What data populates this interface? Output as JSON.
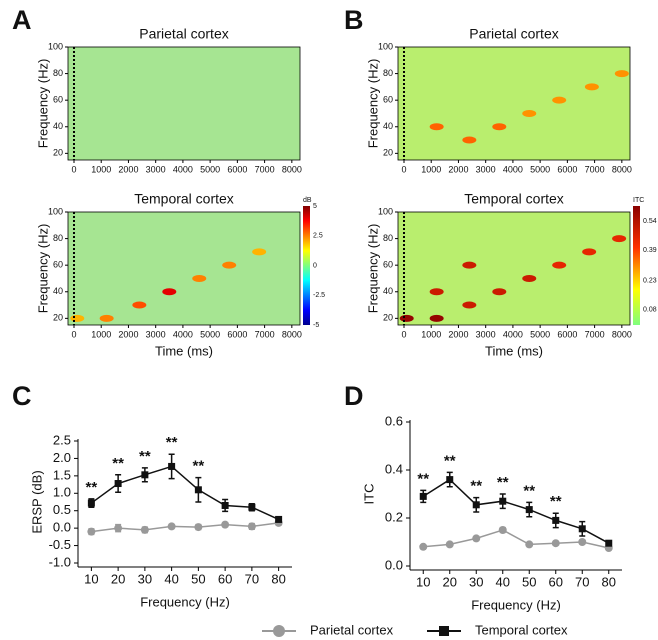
{
  "chart_data": [
    {
      "type": "heatmap",
      "panel": "A",
      "title": "Parietal cortex",
      "ylabel": "Frequency (Hz)",
      "xlim": [
        -220,
        8300
      ],
      "ylim": [
        15,
        100
      ],
      "xticks": [
        0,
        1000,
        2000,
        3000,
        4000,
        5000,
        6000,
        7000,
        8000
      ],
      "yticks": [
        20,
        40,
        60,
        80,
        100
      ],
      "clim": [
        -5,
        5
      ],
      "spot_x": [],
      "spot_y": [],
      "spot_values": []
    },
    {
      "type": "heatmap",
      "title": "Temporal cortex",
      "ylabel": "Frequency (Hz)",
      "xlabel": "Time (ms)",
      "xlim": [
        -220,
        8300
      ],
      "ylim": [
        15,
        100
      ],
      "xticks": [
        0,
        1000,
        2000,
        3000,
        4000,
        5000,
        6000,
        7000,
        8000
      ],
      "yticks": [
        20,
        40,
        60,
        80,
        100
      ],
      "clim": [
        -5,
        5
      ],
      "colorbar_label": "dB",
      "cticks": [
        5,
        2.5,
        0,
        -2.5,
        -5
      ],
      "spot_x": [
        120,
        1200,
        2400,
        3500,
        4600,
        5700,
        6800
      ],
      "spot_y": [
        20,
        20,
        30,
        40,
        50,
        60,
        70
      ],
      "spot_values": [
        2,
        2.5,
        3,
        4,
        2.5,
        2.5,
        2
      ]
    },
    {
      "type": "heatmap",
      "panel": "B",
      "title": "Parietal cortex",
      "ylabel": "Frequency (Hz)",
      "xlim": [
        -220,
        8300
      ],
      "ylim": [
        15,
        100
      ],
      "xticks": [
        0,
        1000,
        2000,
        3000,
        4000,
        5000,
        6000,
        7000,
        8000
      ],
      "yticks": [
        20,
        40,
        60,
        80,
        100
      ],
      "clim": [
        0,
        0.62
      ],
      "spot_x": [
        1200,
        2400,
        3500,
        4600,
        5700,
        6900,
        8000
      ],
      "spot_y": [
        40,
        30,
        40,
        50,
        60,
        70,
        80
      ],
      "spot_values": [
        0.35,
        0.35,
        0.35,
        0.3,
        0.3,
        0.3,
        0.3
      ]
    },
    {
      "type": "heatmap",
      "title": "Temporal cortex",
      "ylabel": "Frequency (Hz)",
      "xlabel": "Time (ms)",
      "xlim": [
        -220,
        8300
      ],
      "ylim": [
        15,
        100
      ],
      "xticks": [
        0,
        1000,
        2000,
        3000,
        4000,
        5000,
        6000,
        7000,
        8000
      ],
      "yticks": [
        20,
        40,
        60,
        80,
        100
      ],
      "clim": [
        0,
        0.62
      ],
      "colorbar_label": "ITC",
      "cticks": [
        0.54,
        0.39,
        0.23,
        0.08
      ],
      "spot_x": [
        100,
        1200,
        1200,
        2400,
        2400,
        3500,
        4600,
        5700,
        6800,
        7900
      ],
      "spot_y": [
        20,
        20,
        40,
        30,
        60,
        40,
        50,
        60,
        70,
        80
      ],
      "spot_values": [
        0.6,
        0.6,
        0.5,
        0.5,
        0.5,
        0.5,
        0.5,
        0.45,
        0.45,
        0.45
      ]
    },
    {
      "type": "errorline",
      "panel": "C",
      "ylabel": "ERSP (dB)",
      "xlabel": "Frequency (Hz)",
      "categories": [
        "10",
        "20",
        "30",
        "40",
        "50",
        "60",
        "70",
        "80"
      ],
      "ylim": [
        -1,
        2.5
      ],
      "yticks": [
        {
          "value": -1,
          "label": "-1.0"
        },
        -0.5,
        {
          "value": 0,
          "label": "0.0"
        },
        0.5,
        {
          "value": 1,
          "label": "1.0"
        },
        1.5,
        {
          "value": 2,
          "label": "2.0"
        },
        2.5
      ],
      "series": [
        {
          "name": "Parietal cortex",
          "color": "#999999",
          "marker": "circle",
          "values": [
            -0.1,
            0,
            -0.05,
            0.05,
            0.03,
            0.1,
            0.05,
            0.15
          ],
          "errors": [
            0.08,
            0.1,
            0.08,
            0.05,
            0.07,
            0.06,
            0.08,
            0.06
          ]
        },
        {
          "name": "Temporal cortex",
          "color": "#111111",
          "marker": "square",
          "values": [
            0.72,
            1.28,
            1.53,
            1.77,
            1.1,
            0.65,
            0.6,
            0.25
          ],
          "errors": [
            0.12,
            0.25,
            0.2,
            0.35,
            0.35,
            0.17,
            0.1,
            0.05
          ]
        }
      ],
      "significance": [
        "**",
        "**",
        "**",
        "**",
        "**",
        null,
        null,
        null
      ]
    },
    {
      "type": "errorline",
      "panel": "D",
      "ylabel": "ITC",
      "xlabel": "Frequency (Hz)",
      "categories": [
        "10",
        "20",
        "30",
        "40",
        "50",
        "60",
        "70",
        "80"
      ],
      "ylim": [
        0,
        0.6
      ],
      "yticks": [
        {
          "value": 0,
          "label": "0.0"
        },
        0.2,
        0.4,
        0.6
      ],
      "series": [
        {
          "name": "Parietal cortex",
          "color": "#999999",
          "marker": "circle",
          "values": [
            0.08,
            0.09,
            0.115,
            0.15,
            0.09,
            0.095,
            0.1,
            0.075
          ],
          "errors": [
            0.005,
            0.005,
            0.008,
            0.01,
            0.005,
            0.005,
            0.008,
            0.005
          ]
        },
        {
          "name": "Temporal cortex",
          "color": "#111111",
          "marker": "square",
          "values": [
            0.29,
            0.36,
            0.255,
            0.27,
            0.235,
            0.19,
            0.155,
            0.095
          ],
          "errors": [
            0.025,
            0.03,
            0.03,
            0.03,
            0.03,
            0.03,
            0.03,
            0.01
          ]
        }
      ],
      "significance": [
        "**",
        "**",
        "**",
        "**",
        "**",
        "**",
        null,
        null
      ]
    }
  ]
}
